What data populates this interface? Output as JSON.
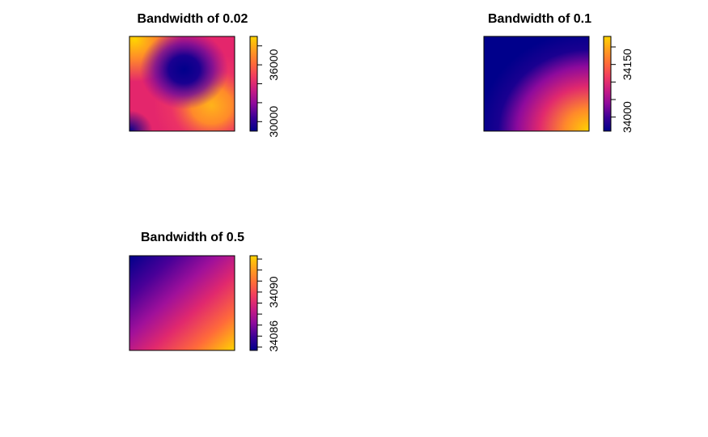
{
  "colors": {
    "palette": [
      "#00008B",
      "#3A0096",
      "#8E0A9C",
      "#C71B84",
      "#F03A62",
      "#FF6A3A",
      "#FF9E1E",
      "#FFD400"
    ],
    "frame": "#000000",
    "background": "#FFFFFF"
  },
  "chart_data": [
    {
      "type": "heatmap",
      "title": "Bandwidth of 0.02",
      "xlabel": "",
      "ylabel": "",
      "legend_placement": "right",
      "legend_ticks": [
        30000,
        32000,
        34000,
        36000,
        38000
      ],
      "legend_tick_labels": [
        "30000",
        "",
        "",
        "36000",
        ""
      ],
      "legend_range": [
        29000,
        39000
      ],
      "value_range": [
        29000,
        39000
      ],
      "surface": {
        "low_spots": [
          {
            "x": 0.52,
            "y": 0.65
          }
        ],
        "high_spots": [
          {
            "x": 0.78,
            "y": 0.27
          },
          {
            "x": 0.05,
            "y": 0.97
          }
        ]
      }
    },
    {
      "type": "heatmap",
      "title": "Bandwidth of 0.1",
      "xlabel": "",
      "ylabel": "",
      "legend_placement": "right",
      "legend_ticks": [
        34000,
        34050,
        34100,
        34150,
        34200
      ],
      "legend_tick_labels": [
        "34000",
        "",
        "",
        "34150",
        ""
      ],
      "legend_range": [
        33960,
        34230
      ],
      "value_range": [
        33960,
        34230
      ],
      "surface": {
        "gradient": "radial-from-bottom-right"
      }
    },
    {
      "type": "heatmap",
      "title": "Bandwidth of 0.5",
      "xlabel": "",
      "ylabel": "",
      "legend_placement": "right",
      "legend_ticks": [
        34085,
        34086,
        34087,
        34088,
        34089,
        34090,
        34091,
        34092,
        34093
      ],
      "legend_tick_labels": [
        "",
        "34086",
        "",
        "",
        "",
        "34090",
        "",
        "",
        ""
      ],
      "legend_range": [
        34084.7,
        34093.3
      ],
      "value_range": [
        34084.7,
        34093.3
      ],
      "surface": {
        "gradient": "linear-from-top-left-to-bottom-right"
      }
    }
  ]
}
